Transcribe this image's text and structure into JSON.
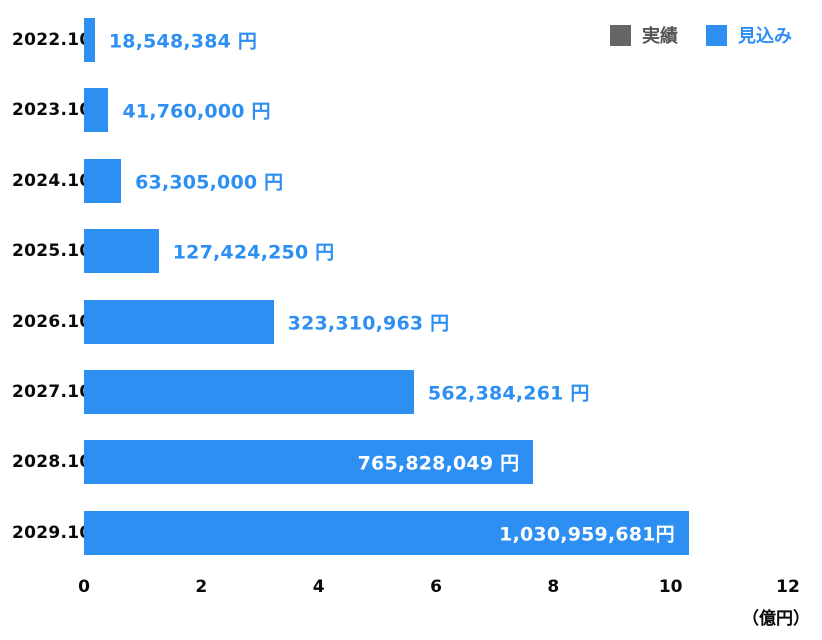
{
  "legend": {
    "items": [
      {
        "label": "実績",
        "color": "#666666",
        "text_color": "#555555"
      },
      {
        "label": "見込み",
        "color": "#2E8FF2",
        "text_color": "#2E8FF2"
      }
    ]
  },
  "chart_data": {
    "type": "bar",
    "orientation": "horizontal",
    "title": "",
    "categories": [
      "2022.10",
      "2023.10",
      "2024.10",
      "2025.10",
      "2026.10",
      "2027.10",
      "2028.10",
      "2029.10"
    ],
    "series": [
      {
        "name": "実績",
        "color": "#666666",
        "values": []
      },
      {
        "name": "見込み",
        "color": "#2E8FF2",
        "values": [
          18548384,
          41760000,
          63305000,
          127424250,
          323310963,
          562384261,
          765828049,
          1030959681
        ]
      }
    ],
    "value_labels": [
      "18,548,384 円",
      "41,760,000 円",
      "63,305,000 円",
      "127,424,250 円",
      "323,310,963 円",
      "562,384,261 円",
      "765,828,049 円",
      "1,030,959,681円"
    ],
    "value_label_inside": [
      false,
      false,
      false,
      false,
      false,
      false,
      true,
      true
    ],
    "x_axis": {
      "ticks": [
        0,
        2,
        4,
        6,
        8,
        10,
        12
      ],
      "unit_label": "（億円）",
      "unit_value_yen": 100000000,
      "min": 0,
      "max": 12
    },
    "grid": false,
    "legend_position": "top-right",
    "background": "#ffffff"
  }
}
